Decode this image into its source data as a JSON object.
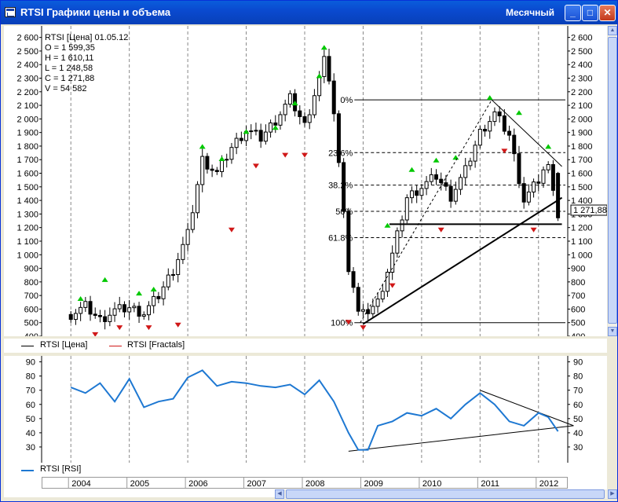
{
  "window": {
    "title": "RTSI Графики цены и объема",
    "period": "Месячный",
    "buttons": {
      "minimize": "_",
      "maximize": "□",
      "close": "✕"
    }
  },
  "price_chart": {
    "info": {
      "line1": "RTSI [Цена] 01.05.12",
      "open": "O = 1 599,35",
      "high": "H = 1 610,11",
      "low": "L = 1 248,58",
      "close": "C = 1 271,88",
      "volume": "V = 54 582"
    },
    "last_price_label": "1 271,88",
    "fib_labels": [
      "0%",
      "23.6%",
      "38.2%",
      "50%",
      "61.8%",
      "100%"
    ],
    "legend": {
      "price": "RTSI [Цена]",
      "fractals": "RTSI [Fractals]"
    }
  },
  "rsi_chart": {
    "legend": "RTSI [RSI]"
  },
  "timeline": {
    "years": [
      "2004",
      "2005",
      "2006",
      "2007",
      "2008",
      "2009",
      "2010",
      "2011",
      "2012"
    ]
  },
  "colors": {
    "titlebar": "#0a4ad0",
    "rsi_line": "#1e78d2",
    "fractal_up": "#00c800",
    "fractal_down": "#d01818",
    "price": "#000000"
  },
  "chart_data": [
    {
      "type": "candlestick",
      "title": "RTSI",
      "ylim": [
        400,
        2650
      ],
      "yticks": [
        400,
        500,
        600,
        700,
        800,
        900,
        1000,
        1100,
        1200,
        1300,
        1400,
        1500,
        1600,
        1700,
        1800,
        1900,
        2000,
        2100,
        2200,
        2300,
        2400,
        2500,
        2600
      ],
      "grid": true,
      "legend_position": "bottom-left",
      "series": [
        {
          "name": "RTSI [Цена]",
          "x": [
            "2004-01",
            "2004-04",
            "2004-07",
            "2004-10",
            "2005-01",
            "2005-04",
            "2005-07",
            "2005-10",
            "2006-01",
            "2006-04",
            "2006-07",
            "2006-10",
            "2007-01",
            "2007-04",
            "2007-07",
            "2007-10",
            "2008-01",
            "2008-04",
            "2008-05",
            "2008-07",
            "2008-10",
            "2008-12",
            "2009-01",
            "2009-04",
            "2009-07",
            "2009-10",
            "2010-01",
            "2010-04",
            "2010-07",
            "2010-10",
            "2011-01",
            "2011-04",
            "2011-07",
            "2011-10",
            "2012-01",
            "2012-03",
            "2012-05"
          ],
          "values": [
            560,
            620,
            520,
            590,
            610,
            570,
            700,
            890,
            1150,
            1700,
            1600,
            1790,
            1920,
            1860,
            1990,
            2150,
            1950,
            2300,
            2460,
            2050,
            900,
            620,
            560,
            650,
            1000,
            1420,
            1500,
            1580,
            1430,
            1620,
            1900,
            2040,
            1880,
            1400,
            1550,
            1700,
            1271.88
          ]
        }
      ],
      "fibonacci": {
        "high": 2140,
        "low": 500,
        "levels": [
          0,
          23.6,
          38.2,
          50,
          61.8,
          100
        ],
        "level_prices": [
          2140,
          1752,
          1513,
          1320,
          1126,
          500
        ]
      }
    },
    {
      "type": "line",
      "ylim": [
        20,
        92
      ],
      "yticks": [
        30,
        40,
        50,
        60,
        70,
        80,
        90
      ],
      "grid": true,
      "series": [
        {
          "name": "RTSI [RSI]",
          "x": [
            "2004-01",
            "2004-04",
            "2004-07",
            "2004-10",
            "2005-01",
            "2005-04",
            "2005-07",
            "2005-10",
            "2006-01",
            "2006-04",
            "2006-07",
            "2006-10",
            "2007-01",
            "2007-04",
            "2007-07",
            "2007-10",
            "2008-01",
            "2008-04",
            "2008-07",
            "2008-10",
            "2008-12",
            "2009-02",
            "2009-04",
            "2009-07",
            "2009-10",
            "2010-01",
            "2010-04",
            "2010-07",
            "2010-10",
            "2011-01",
            "2011-04",
            "2011-07",
            "2011-10",
            "2012-01",
            "2012-03",
            "2012-05"
          ],
          "values": [
            72,
            68,
            75,
            62,
            78,
            58,
            62,
            64,
            79,
            84,
            73,
            76,
            75,
            73,
            72,
            74,
            67,
            77,
            62,
            40,
            28,
            28,
            45,
            48,
            54,
            52,
            57,
            50,
            60,
            68,
            60,
            48,
            45,
            54,
            51,
            41
          ]
        }
      ]
    }
  ]
}
